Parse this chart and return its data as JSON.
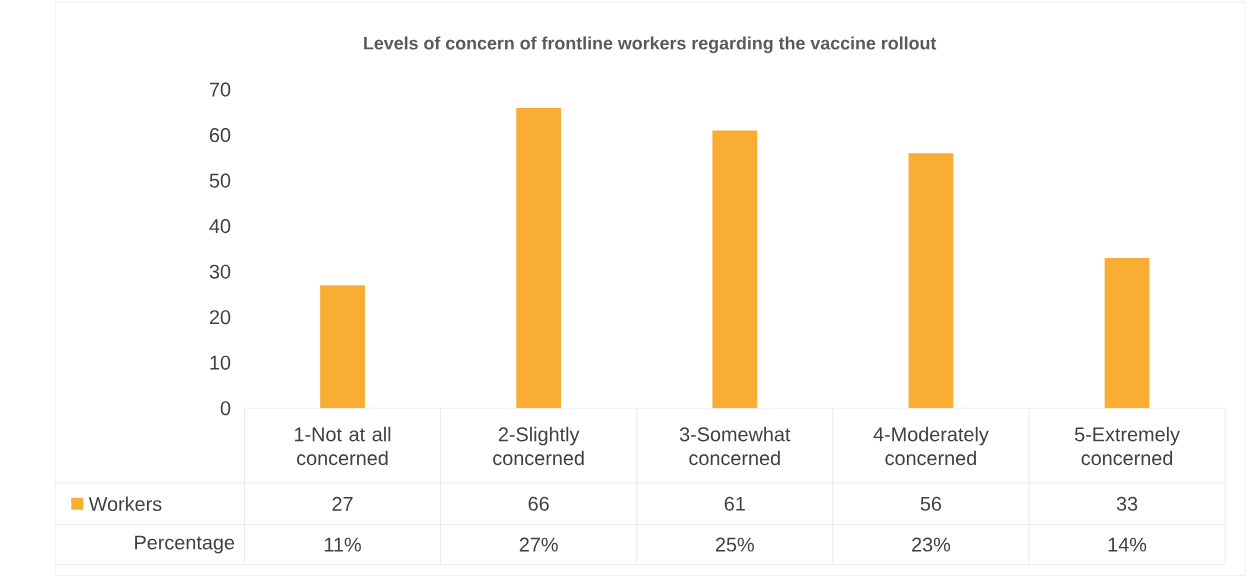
{
  "chart_data": {
    "type": "bar",
    "title": "Levels of concern of frontline workers regarding the vaccine rollout",
    "categories": [
      "1-Not at all concerned",
      "2-Slightly concerned",
      "3-Somewhat concerned",
      "4-Moderately concerned",
      "5-Extremely concerned"
    ],
    "series": [
      {
        "name": "Workers",
        "color": "#f9ae33",
        "values": [
          27,
          66,
          61,
          56,
          33
        ]
      }
    ],
    "ylim": [
      0,
      70
    ],
    "yticks": [
      0,
      10,
      20,
      30,
      40,
      50,
      60,
      70
    ],
    "data_labels": true,
    "legend": "bottom",
    "annotations": [
      "Percentage",
      "11%",
      "27%",
      "25%",
      "23%",
      "14%"
    ]
  }
}
